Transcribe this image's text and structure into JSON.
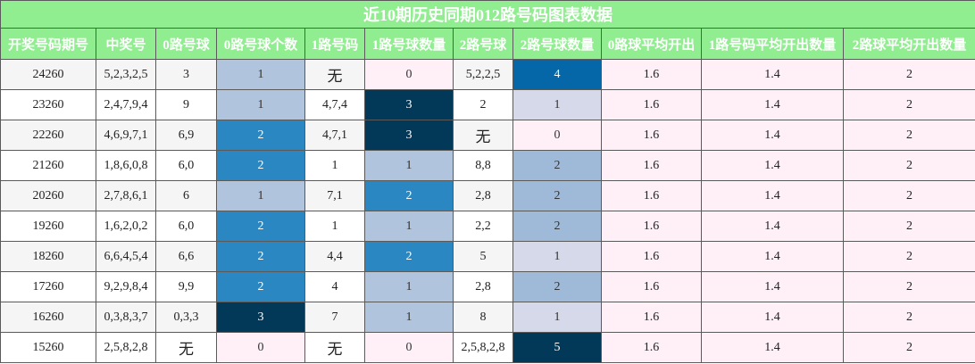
{
  "title": "近10期历史同期012路号码图表数据",
  "headers": [
    "开奖号码期号",
    "中奖号",
    "0路号球",
    "0路号球个数",
    "1路号码",
    "1路号球数量",
    "2路号球",
    "2路号球数量",
    "0路球平均开出",
    "1路号码平均开出数量",
    "2路球平均开出数量"
  ],
  "rows": [
    {
      "period": "24260",
      "numbers": "5,2,3,2,5",
      "r0": "3",
      "r0_count": "1",
      "r1": "无",
      "r1_count": "0",
      "r2": "5,2,2,5",
      "r2_count": "4",
      "avg0": "1.6",
      "avg1": "1.4",
      "avg2": "2"
    },
    {
      "period": "23260",
      "numbers": "2,4,7,9,4",
      "r0": "9",
      "r0_count": "1",
      "r1": "4,7,4",
      "r1_count": "3",
      "r2": "2",
      "r2_count": "1",
      "avg0": "1.6",
      "avg1": "1.4",
      "avg2": "2"
    },
    {
      "period": "22260",
      "numbers": "4,6,9,7,1",
      "r0": "6,9",
      "r0_count": "2",
      "r1": "4,7,1",
      "r1_count": "3",
      "r2": "无",
      "r2_count": "0",
      "avg0": "1.6",
      "avg1": "1.4",
      "avg2": "2"
    },
    {
      "period": "21260",
      "numbers": "1,8,6,0,8",
      "r0": "6,0",
      "r0_count": "2",
      "r1": "1",
      "r1_count": "1",
      "r2": "8,8",
      "r2_count": "2",
      "avg0": "1.6",
      "avg1": "1.4",
      "avg2": "2"
    },
    {
      "period": "20260",
      "numbers": "2,7,8,6,1",
      "r0": "6",
      "r0_count": "1",
      "r1": "7,1",
      "r1_count": "2",
      "r2": "2,8",
      "r2_count": "2",
      "avg0": "1.6",
      "avg1": "1.4",
      "avg2": "2"
    },
    {
      "period": "19260",
      "numbers": "1,6,2,0,2",
      "r0": "6,0",
      "r0_count": "2",
      "r1": "1",
      "r1_count": "1",
      "r2": "2,2",
      "r2_count": "2",
      "avg0": "1.6",
      "avg1": "1.4",
      "avg2": "2"
    },
    {
      "period": "18260",
      "numbers": "6,6,4,5,4",
      "r0": "6,6",
      "r0_count": "2",
      "r1": "4,4",
      "r1_count": "2",
      "r2": "5",
      "r2_count": "1",
      "avg0": "1.6",
      "avg1": "1.4",
      "avg2": "2"
    },
    {
      "period": "17260",
      "numbers": "9,2,9,8,4",
      "r0": "9,9",
      "r0_count": "2",
      "r1": "4",
      "r1_count": "1",
      "r2": "2,8",
      "r2_count": "2",
      "avg0": "1.6",
      "avg1": "1.4",
      "avg2": "2"
    },
    {
      "period": "16260",
      "numbers": "0,3,8,3,7",
      "r0": "0,3,3",
      "r0_count": "3",
      "r1": "7",
      "r1_count": "1",
      "r2": "8",
      "r2_count": "1",
      "avg0": "1.6",
      "avg1": "1.4",
      "avg2": "2"
    },
    {
      "period": "15260",
      "numbers": "2,5,8,2,8",
      "r0": "无",
      "r0_count": "0",
      "r1": "无",
      "r1_count": "0",
      "r2": "2,5,8,2,8",
      "r2_count": "5",
      "avg0": "1.6",
      "avg1": "1.4",
      "avg2": "2"
    }
  ]
}
